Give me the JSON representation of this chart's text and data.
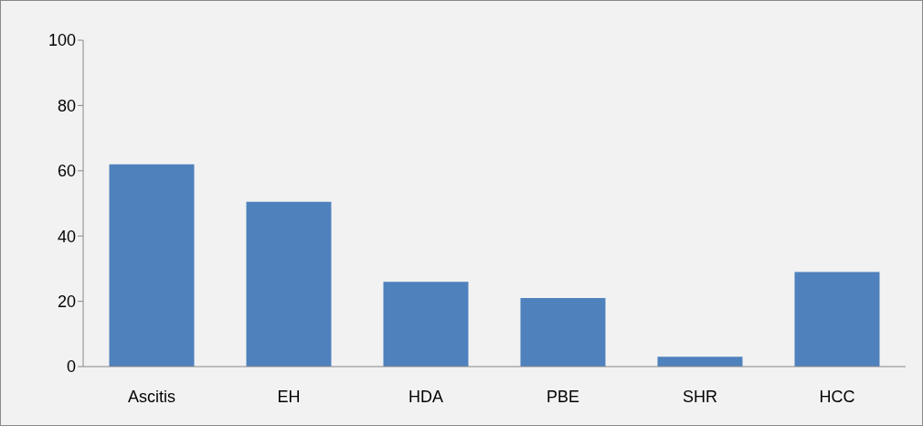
{
  "chart_data": {
    "type": "bar",
    "categories": [
      "Ascitis",
      "EH",
      "HDA",
      "PBE",
      "SHR",
      "HCC"
    ],
    "values": [
      62,
      50.5,
      26,
      21,
      3,
      29
    ],
    "color": "#4f81bd",
    "ylim": [
      0,
      100
    ],
    "yticks": [
      0,
      20,
      40,
      60,
      80,
      100
    ],
    "grid": false,
    "legend": false
  }
}
